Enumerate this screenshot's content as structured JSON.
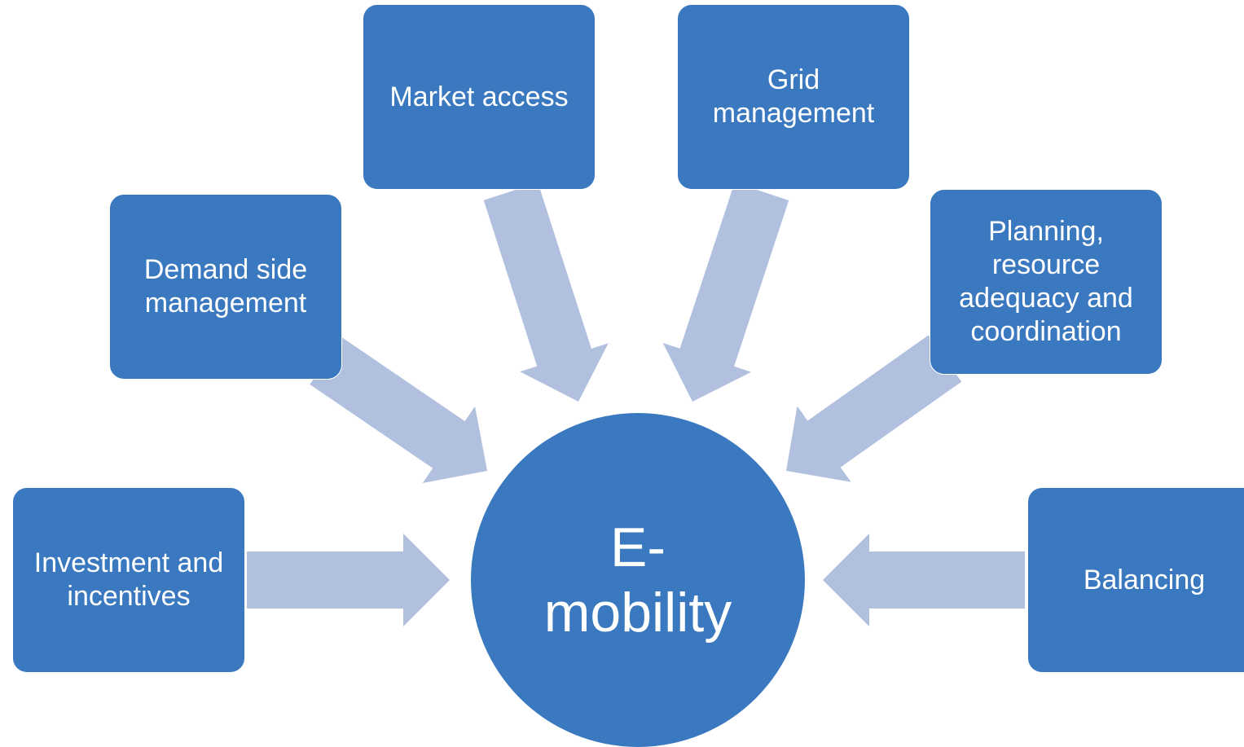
{
  "nodes": [
    {
      "label": "Market access"
    },
    {
      "label": "Grid management"
    },
    {
      "label": "Demand side management"
    },
    {
      "label": "Planning, resource adequacy and coordination"
    },
    {
      "label": "Investment and incentives"
    },
    {
      "label": "Balancing"
    }
  ],
  "center": {
    "label": "E-mobility"
  }
}
